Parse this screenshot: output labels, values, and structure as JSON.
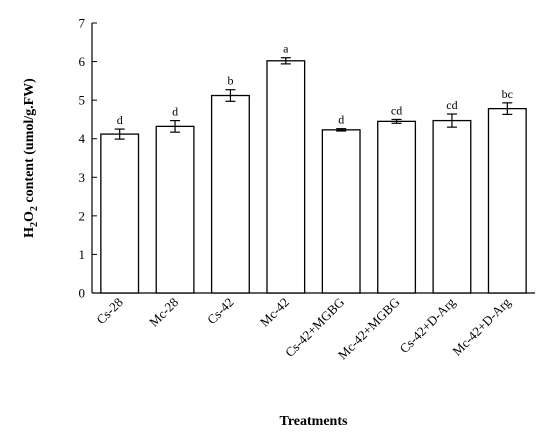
{
  "chart_data": {
    "type": "bar",
    "categories": [
      "Cs-28",
      "Mc-28",
      "Cs-42",
      "Mc-42",
      "Cs-42+MGBG",
      "Mc-42+MGBG",
      "Cs-42+D-Arg",
      "Mc-42+D-Arg"
    ],
    "values": [
      4.12,
      4.32,
      5.12,
      6.02,
      4.23,
      4.45,
      4.47,
      4.78
    ],
    "errors": [
      0.13,
      0.15,
      0.15,
      0.08,
      0.03,
      0.05,
      0.17,
      0.15
    ],
    "significance": [
      "d",
      "d",
      "b",
      "a",
      "d",
      "cd",
      "cd",
      "bc"
    ],
    "ylim": [
      0,
      7
    ],
    "yticks": [
      0,
      1,
      2,
      3,
      4,
      5,
      6,
      7
    ],
    "ylabel_parts": [
      "H",
      "2",
      "O",
      "2",
      " content (umol/g.FW)"
    ],
    "xlabel": "Treatments",
    "bar_color": "#ffffff",
    "edge_color": "#000000"
  }
}
